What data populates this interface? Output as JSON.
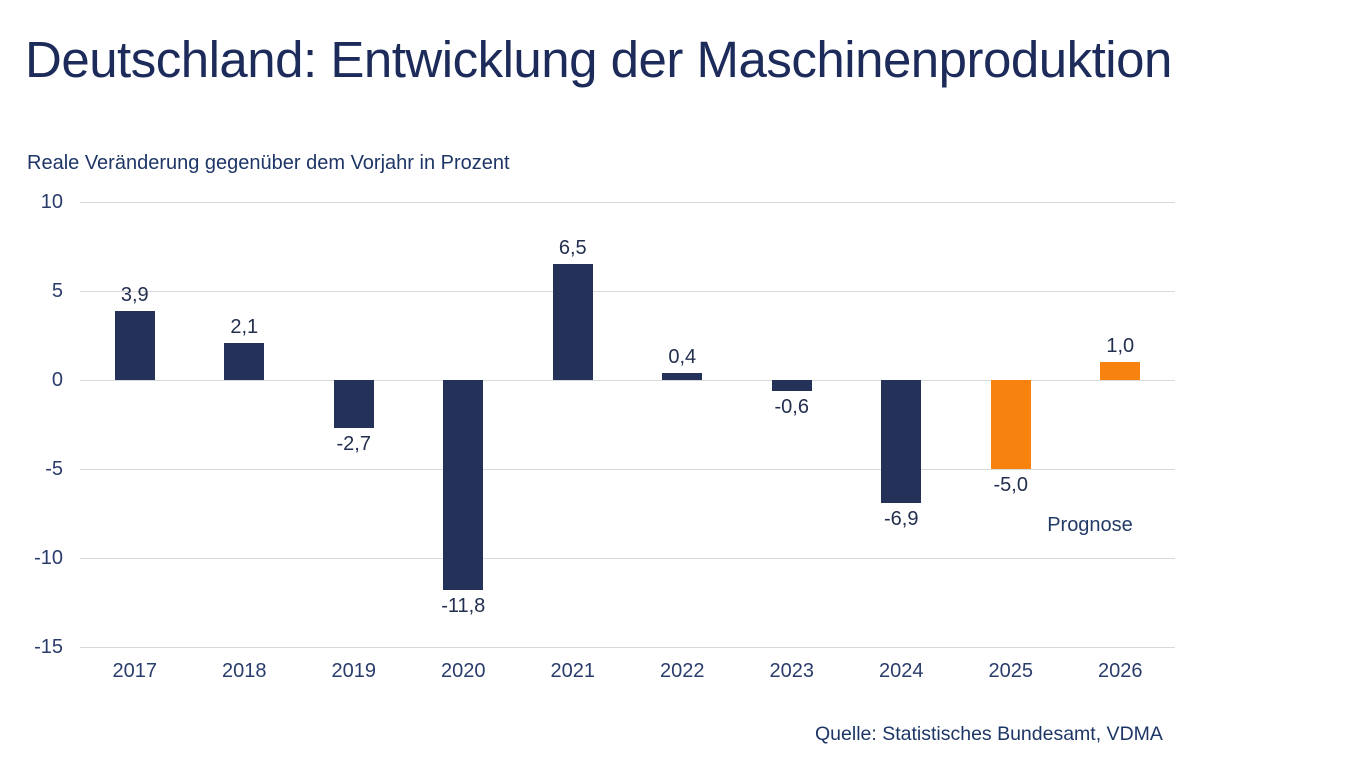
{
  "title": "Deutschland: Entwicklung der Maschinenproduktion",
  "subtitle": "Reale Veränderung gegenüber dem Vorjahr in Prozent",
  "source": "Quelle: Statistisches Bundesamt, VDMA",
  "colors": {
    "bar_navy": "#243159",
    "bar_forecast_orange": "#f7820d",
    "gridline_gray": "#d9d9d9",
    "text_navy": "#1e3666"
  },
  "chart_data": {
    "type": "bar",
    "title": "Deutschland: Entwicklung der Maschinenproduktion",
    "subtitle_ylabel": "Reale Veränderung gegenüber dem Vorjahr in Prozent",
    "categories": [
      "2017",
      "2018",
      "2019",
      "2020",
      "2021",
      "2022",
      "2023",
      "2024",
      "2025",
      "2026"
    ],
    "values": [
      3.9,
      2.1,
      -2.7,
      -11.8,
      6.5,
      0.4,
      -0.6,
      -6.9,
      -5.0,
      1.0
    ],
    "value_labels": [
      "3,9",
      "2,1",
      "-2,7",
      "-11,8",
      "6,5",
      "0,4",
      "-0,6",
      "-6,9",
      "-5,0",
      "1,0"
    ],
    "forecast_flags": [
      false,
      false,
      false,
      false,
      false,
      false,
      false,
      false,
      true,
      true
    ],
    "annotation": "Prognose",
    "ylim": [
      -15,
      10
    ],
    "yticks": [
      10,
      5,
      0,
      -5,
      -10,
      -15
    ],
    "grid": true,
    "legend": "none",
    "source": "Quelle: Statistisches Bundesamt, VDMA"
  }
}
